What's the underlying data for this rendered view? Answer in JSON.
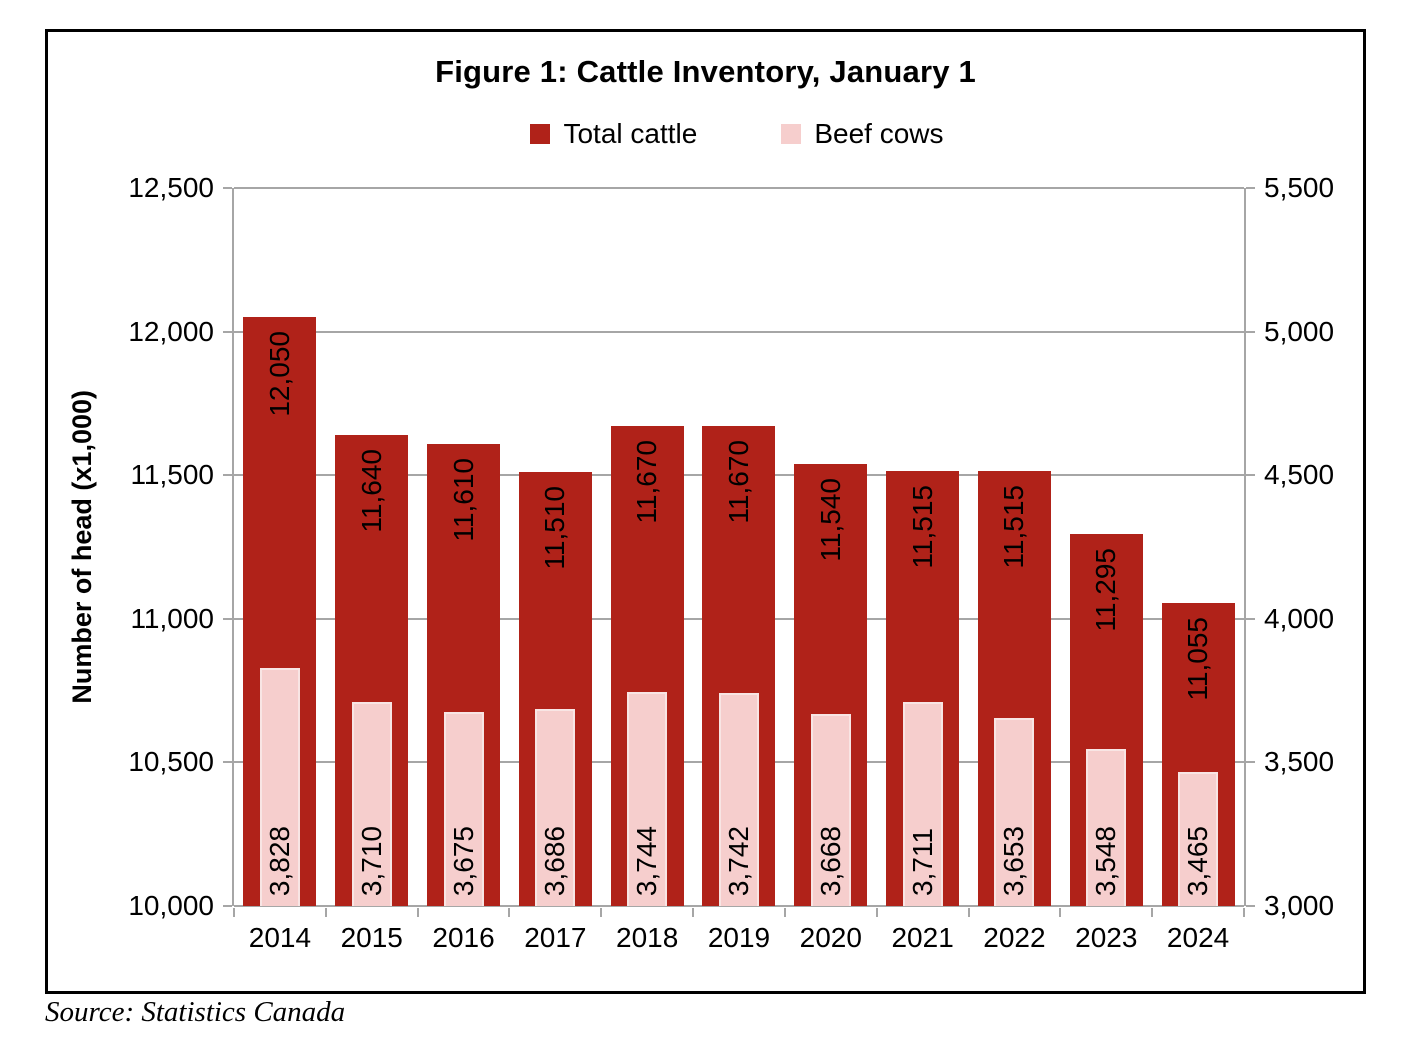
{
  "figure": {
    "title": "Figure 1: Cattle Inventory, January 1",
    "source": "Source: Statistics Canada"
  },
  "legend": [
    {
      "label": "Total cattle",
      "color": "#B02219"
    },
    {
      "label": "Beef cows",
      "color": "#F6CECD"
    }
  ],
  "chart_data": {
    "type": "bar",
    "title": "Figure 1: Cattle Inventory, January 1",
    "categories": [
      "2014",
      "2015",
      "2016",
      "2017",
      "2018",
      "2019",
      "2020",
      "2021",
      "2022",
      "2023",
      "2024"
    ],
    "series": [
      {
        "name": "Total cattle",
        "axis": "left",
        "color": "#B02219",
        "values": [
          12050,
          11640,
          11610,
          11510,
          11670,
          11670,
          11540,
          11515,
          11515,
          11295,
          11055
        ],
        "labels": [
          "12,050",
          "11,640",
          "11,610",
          "11,510",
          "11,670",
          "11,670",
          "11,540",
          "11,515",
          "11,515",
          "11,295",
          "11,055"
        ]
      },
      {
        "name": "Beef cows",
        "axis": "right",
        "color": "#F6CECD",
        "values": [
          3828,
          3710,
          3675,
          3686,
          3744,
          3742,
          3668,
          3711,
          3653,
          3548,
          3465
        ],
        "labels": [
          "3,828",
          "3,710",
          "3,675",
          "3,686",
          "3,744",
          "3,742",
          "3,668",
          "3,711",
          "3,653",
          "3,548",
          "3,465"
        ]
      }
    ],
    "left_axis": {
      "title": "Number of head (x1,000)",
      "min": 10000,
      "max": 12500,
      "step": 500,
      "ticks": [
        "12,500",
        "12,000",
        "11,500",
        "11,000",
        "10,500",
        "10,000"
      ]
    },
    "right_axis": {
      "min": 3000,
      "max": 5500,
      "step": 500,
      "ticks": [
        "5,500",
        "5,000",
        "4,500",
        "4,000",
        "3,500",
        "3,000"
      ]
    },
    "grid": true,
    "grid_color": "#A6A6A6",
    "legend_position": "top"
  }
}
